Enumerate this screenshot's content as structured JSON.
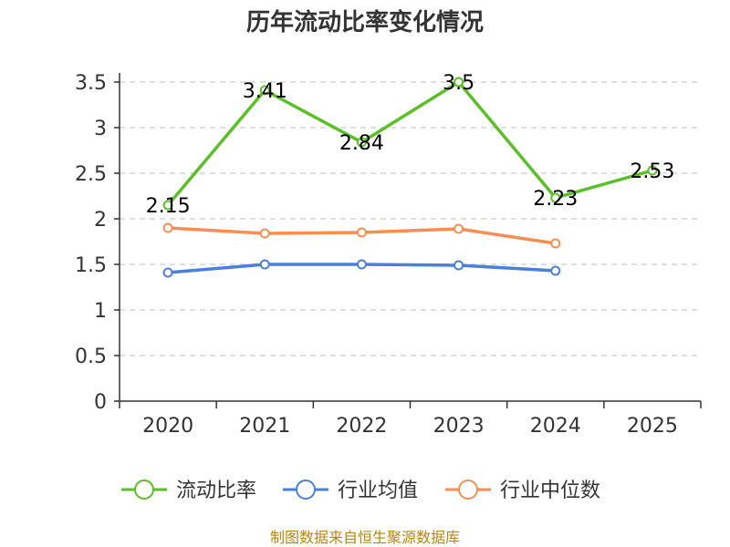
{
  "chart_data": {
    "type": "line",
    "title": "历年流动比率变化情况",
    "categories": [
      "2020",
      "2021",
      "2022",
      "2023",
      "2024",
      "2025"
    ],
    "y_ticks": [
      "0",
      "0.5",
      "1",
      "1.5",
      "2",
      "2.5",
      "3",
      "3.5"
    ],
    "ylim": [
      0,
      3.5
    ],
    "grid": true,
    "legend_position": "bottom",
    "series": [
      {
        "name": "流动比率",
        "color": "#5bbf27",
        "values": [
          2.15,
          3.41,
          2.84,
          3.5,
          2.23,
          2.53
        ],
        "labels": [
          "2.15",
          "3.41",
          "2.84",
          "3.5",
          "2.23",
          "2.53"
        ],
        "show_labels": true
      },
      {
        "name": "行业均值",
        "color": "#4a7fdb",
        "values": [
          1.41,
          1.5,
          1.5,
          1.49,
          1.43,
          null
        ],
        "show_labels": false
      },
      {
        "name": "行业中位数",
        "color": "#f98e54",
        "values": [
          1.9,
          1.84,
          1.85,
          1.89,
          1.73,
          null
        ],
        "show_labels": false
      }
    ],
    "source": "制图数据来自恒生聚源数据库"
  }
}
